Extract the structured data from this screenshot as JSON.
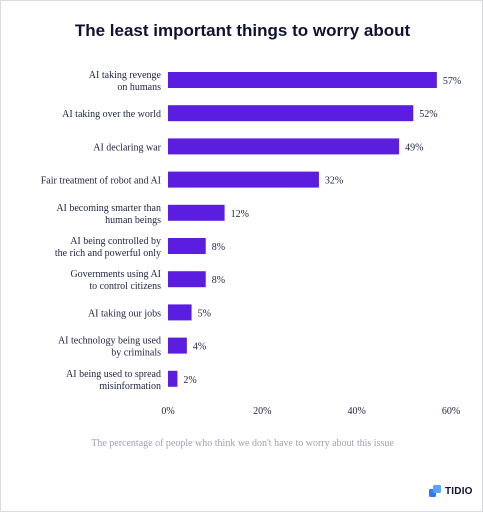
{
  "header": {
    "title": "The least important things to worry about"
  },
  "footer": {
    "caption": "The percentage of people who think we don't have to worry about this issue",
    "brand": "TIDIO",
    "brand_icon": "tidio-logo-icon"
  },
  "colors": {
    "bar": "#5b1ee0",
    "text": "#1f2340",
    "muted": "#9ea2b4",
    "logo": "#2c7bf2"
  },
  "chart_data": {
    "type": "bar",
    "orientation": "horizontal",
    "title": "The least important things to worry about",
    "xlabel": "The percentage of people who think we don't have to worry about this issue",
    "ylabel": "",
    "categories": [
      [
        "AI taking revenge",
        "on humans"
      ],
      [
        "AI taking over the world"
      ],
      [
        "AI declaring war"
      ],
      [
        "Fair treatment of robot and AI"
      ],
      [
        "AI becoming smarter than",
        "human beings"
      ],
      [
        "AI being controlled by",
        "the rich and powerful only"
      ],
      [
        "Governments using AI",
        "to control citizens"
      ],
      [
        "AI taking our jobs"
      ],
      [
        "AI technology being used",
        "by criminals"
      ],
      [
        "AI being used to spread",
        "misinformation"
      ]
    ],
    "values": [
      57,
      52,
      49,
      32,
      12,
      8,
      8,
      5,
      4,
      2
    ],
    "value_labels": [
      "57%",
      "52%",
      "49%",
      "32%",
      "12%",
      "8%",
      "8%",
      "5%",
      "4%",
      "2%"
    ],
    "xticks": [
      "0%",
      "20%",
      "40%",
      "60%"
    ],
    "xtick_values": [
      0,
      20,
      40,
      60
    ],
    "xlim": [
      0,
      60
    ],
    "grid": false,
    "legend": "none"
  }
}
